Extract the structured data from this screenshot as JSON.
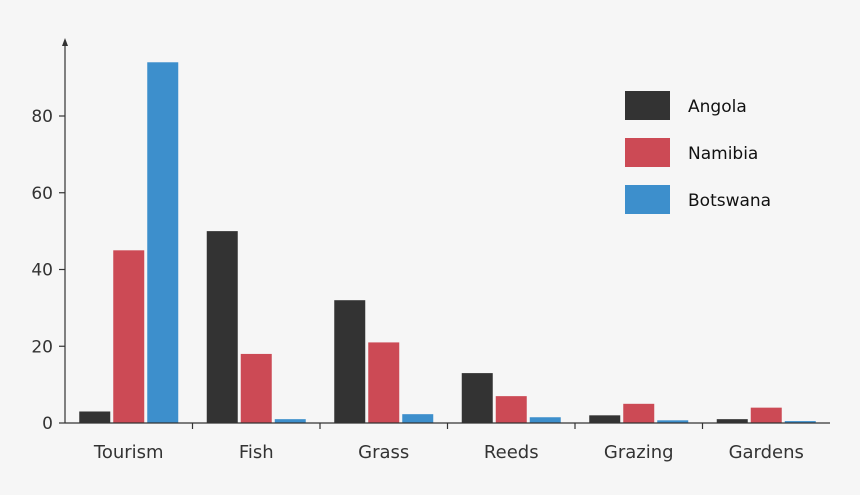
{
  "chart_data": {
    "type": "bar",
    "categories": [
      "Tourism",
      "Fish",
      "Grass",
      "Reeds",
      "Grazing",
      "Gardens"
    ],
    "series": [
      {
        "name": "Angola",
        "color": "#333333",
        "values": [
          3,
          50,
          32,
          13,
          2,
          1
        ]
      },
      {
        "name": "Namibia",
        "color": "#cc4a55",
        "values": [
          45,
          18,
          21,
          7,
          5,
          4
        ]
      },
      {
        "name": "Botswana",
        "color": "#3d8fcc",
        "values": [
          94,
          1,
          2.3,
          1.5,
          0.7,
          0.5
        ]
      }
    ],
    "yticks": [
      0,
      20,
      40,
      60,
      80
    ],
    "ylim": [
      0,
      100
    ],
    "title": "",
    "xlabel": "",
    "ylabel": "",
    "legend_position": "top-right",
    "grid": false
  }
}
